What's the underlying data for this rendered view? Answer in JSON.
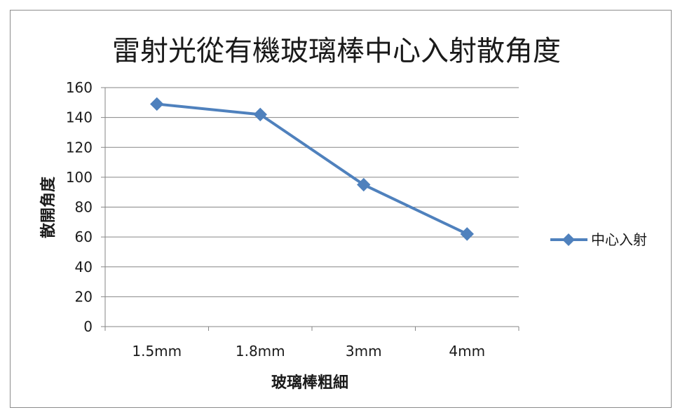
{
  "chart_data": {
    "type": "line",
    "title": "雷射光從有機玻璃棒中心入射散角度",
    "xlabel": "玻璃棒粗細",
    "ylabel": "散開角度",
    "categories": [
      "1.5mm",
      "1.8mm",
      "3mm",
      "4mm"
    ],
    "series": [
      {
        "name": "中心入射",
        "values": [
          149,
          142,
          95,
          62
        ],
        "color": "#4f81bd",
        "marker": "diamond"
      }
    ],
    "ylim": [
      0,
      160
    ],
    "yticks": [
      0,
      20,
      40,
      60,
      80,
      100,
      120,
      140,
      160
    ],
    "grid": true,
    "legend": "right",
    "gridline_color": "#868686"
  }
}
